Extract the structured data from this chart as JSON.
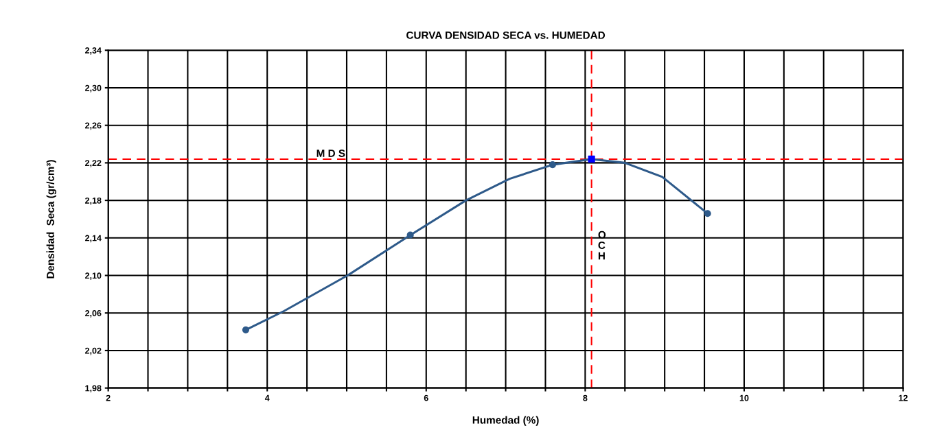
{
  "chart_data": {
    "type": "line",
    "title": "CURVA DENSIDAD SECA vs. HUMEDAD",
    "xlabel": "Humedad (%)",
    "ylabel": "Densidad  Seca (gr/cm³)",
    "xlim": [
      2,
      12
    ],
    "xticks": [
      2,
      {
        "value": 2.5,
        "label": null
      },
      {
        "value": 3,
        "label": null
      },
      {
        "value": 3.5,
        "label": null
      },
      4,
      {
        "value": 4.5,
        "label": null
      },
      {
        "value": 5,
        "label": null
      },
      {
        "value": 5.5,
        "label": null
      },
      6,
      {
        "value": 6.5,
        "label": null
      },
      {
        "value": 7,
        "label": null
      },
      {
        "value": 7.5,
        "label": null
      },
      8,
      {
        "value": 8.5,
        "label": null
      },
      {
        "value": 9,
        "label": null
      },
      {
        "value": 9.5,
        "label": null
      },
      10,
      {
        "value": 10.5,
        "label": null
      },
      {
        "value": 11,
        "label": null
      },
      {
        "value": 11.5,
        "label": null
      },
      12
    ],
    "ylim": [
      1.98,
      2.34
    ],
    "yticks": [
      {
        "value": 1.98,
        "label": "1,98"
      },
      {
        "value": 2.02,
        "label": "2,02"
      },
      {
        "value": 2.06,
        "label": "2,06"
      },
      {
        "value": 2.1,
        "label": "2,10"
      },
      {
        "value": 2.14,
        "label": "2,14"
      },
      {
        "value": 2.18,
        "label": "2,18"
      },
      {
        "value": 2.22,
        "label": "2,22"
      },
      {
        "value": 2.26,
        "label": "2,26"
      },
      {
        "value": 2.3,
        "label": "2,30"
      },
      {
        "value": 2.34,
        "label": "2,34"
      }
    ],
    "grid": true,
    "series": [
      {
        "color": "#2e5a8a",
        "marker": "none",
        "line_style": "solid",
        "x": [
          3.73,
          4.21,
          5.01,
          5.8,
          6.5,
          7.05,
          7.59,
          8.08,
          8.5,
          8.97,
          9.54
        ],
        "values": [
          2.042,
          2.062,
          2.1,
          2.143,
          2.18,
          2.203,
          2.218,
          2.224,
          2.22,
          2.205,
          2.166
        ]
      },
      {
        "type": "scatter",
        "color": "#2e5a8a",
        "marker": "circle",
        "x": [
          3.73,
          5.8,
          7.59,
          9.54
        ],
        "values": [
          2.042,
          2.143,
          2.218,
          2.166
        ]
      },
      {
        "type": "scatter",
        "color": "#0000ff",
        "marker": "square",
        "x": [
          8.08
        ],
        "values": [
          2.224
        ]
      }
    ],
    "ref_lines": [
      {
        "axis": "y",
        "value": 2.224,
        "label": "M D S",
        "color": "#ff0000",
        "line_style": "dashed"
      },
      {
        "axis": "x",
        "value": 8.08,
        "label": "O C H",
        "color": "#ff0000",
        "line_style": "dashed"
      }
    ]
  }
}
